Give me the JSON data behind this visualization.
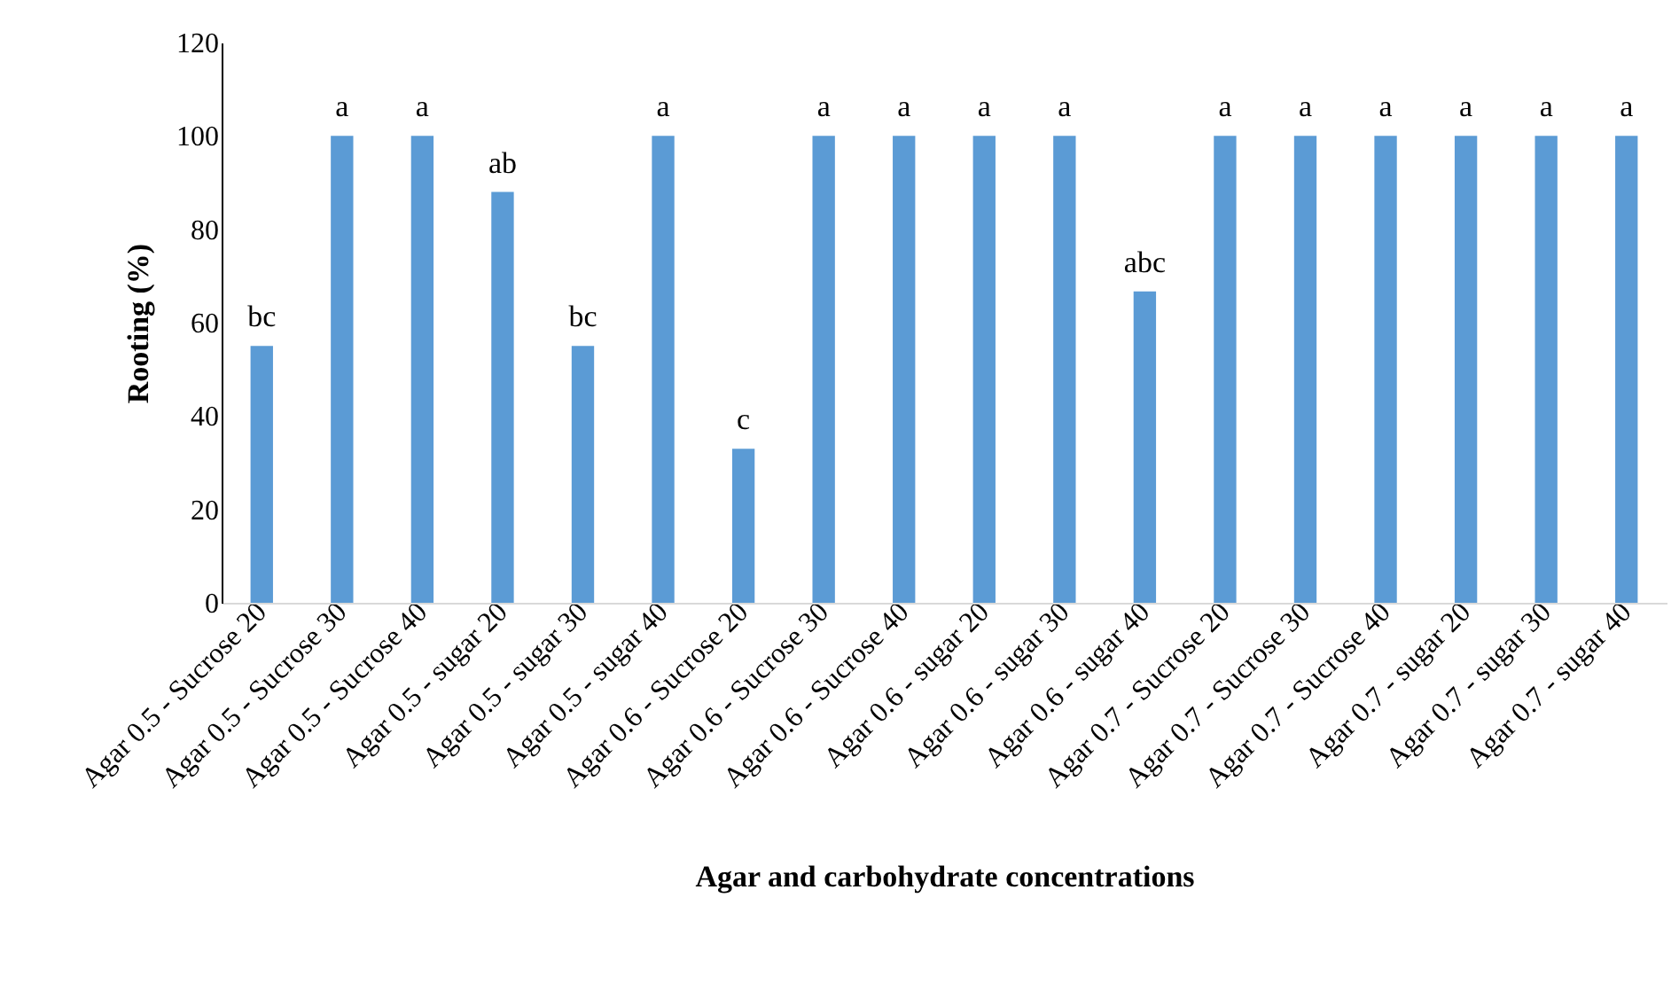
{
  "chart_data": {
    "type": "bar",
    "xlabel": "Agar and carbohydrate concentrations",
    "ylabel": "Rooting (%)",
    "categories": [
      "Agar 0.5 - Sucrose 20",
      "Agar 0.5 - Sucrose 30",
      "Agar 0.5 - Sucrose 40",
      "Agar 0.5 - sugar 20",
      "Agar 0.5 - sugar 30",
      "Agar 0.5 - sugar 40",
      "Agar 0.6 - Sucrose 20",
      "Agar 0.6 - Sucrose 30",
      "Agar 0.6 - Sucrose 40",
      "Agar 0.6 - sugar 20",
      "Agar 0.6 - sugar 30",
      "Agar 0.6 - sugar 40",
      "Agar 0.7 - Sucrose 20",
      "Agar 0.7 - Sucrose 30",
      "Agar 0.7 - Sucrose 40",
      "Agar 0.7 - sugar 20",
      "Agar 0.7 - sugar 30",
      "Agar 0.7 - sugar 40"
    ],
    "values": [
      55,
      100,
      100,
      88,
      55,
      100,
      33,
      100,
      100,
      100,
      100,
      66.7,
      100,
      100,
      100,
      100,
      100,
      100
    ],
    "color": "#5b9bd5",
    "ylim": [
      0,
      120
    ],
    "yticks": [
      0,
      20,
      40,
      60,
      80,
      100,
      120
    ],
    "grid": false,
    "annotations": [
      {
        "text": "bc",
        "x": "Agar 0.5 - Sucrose 20",
        "y": 55
      },
      {
        "text": "a",
        "x": "Agar 0.5 - Sucrose 30",
        "y": 100
      },
      {
        "text": "a",
        "x": "Agar 0.5 - Sucrose 40",
        "y": 100
      },
      {
        "text": "ab",
        "x": "Agar 0.5 - sugar 20",
        "y": 88
      },
      {
        "text": "bc",
        "x": "Agar 0.5 - sugar 30",
        "y": 55
      },
      {
        "text": "a",
        "x": "Agar 0.5 - sugar 40",
        "y": 100
      },
      {
        "text": "c",
        "x": "Agar 0.6 - Sucrose 20",
        "y": 33
      },
      {
        "text": "a",
        "x": "Agar 0.6 - Sucrose 30",
        "y": 100
      },
      {
        "text": "a",
        "x": "Agar 0.6 - Sucrose 40",
        "y": 100
      },
      {
        "text": "a",
        "x": "Agar 0.6 - sugar 20",
        "y": 100
      },
      {
        "text": "a",
        "x": "Agar 0.6 - sugar 30",
        "y": 100
      },
      {
        "text": "abc",
        "x": "Agar 0.6 - sugar 40",
        "y": 66.7
      },
      {
        "text": "a",
        "x": "Agar 0.7 - Sucrose 20",
        "y": 100
      },
      {
        "text": "a",
        "x": "Agar 0.7 - Sucrose 30",
        "y": 100
      },
      {
        "text": "a",
        "x": "Agar 0.7 - Sucrose 40",
        "y": 100
      },
      {
        "text": "a",
        "x": "Agar 0.7 - sugar 20",
        "y": 100
      },
      {
        "text": "a",
        "x": "Agar 0.7 - sugar 30",
        "y": 100
      },
      {
        "text": "a",
        "x": "Agar 0.7 - sugar 40",
        "y": 100
      }
    ]
  }
}
